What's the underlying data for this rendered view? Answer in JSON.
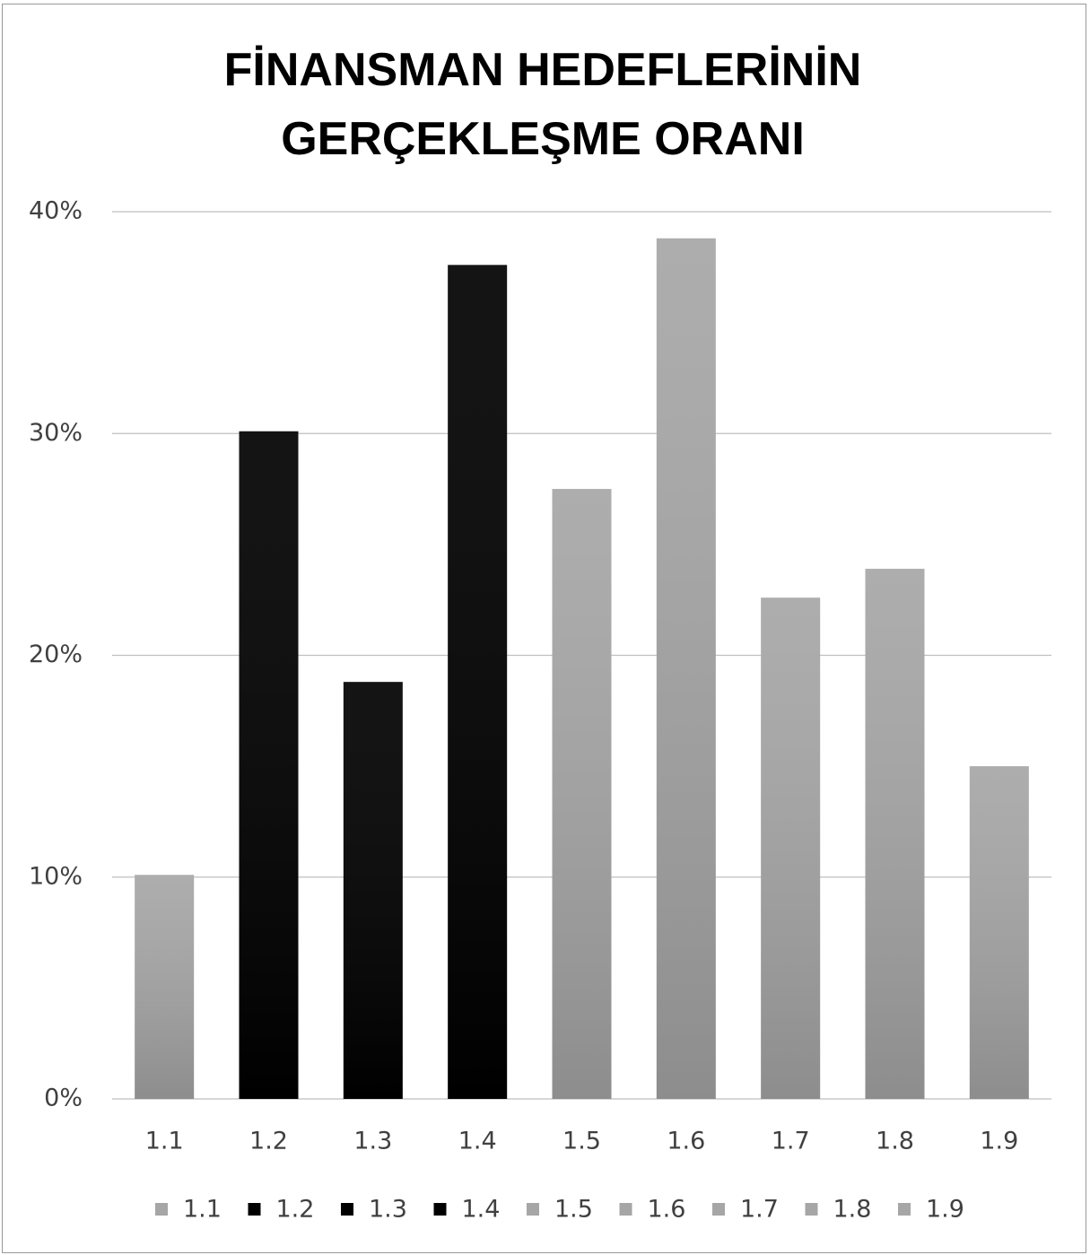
{
  "chart_data": {
    "type": "bar",
    "title": "FİNANSMAN HEDEFLERİNİN GERÇEKLEŞME ORANI",
    "categories": [
      "1.1",
      "1.2",
      "1.3",
      "1.4",
      "1.5",
      "1.6",
      "1.7",
      "1.8",
      "1.9"
    ],
    "values": [
      10.1,
      30.1,
      18.8,
      37.6,
      27.5,
      38.8,
      22.6,
      23.9,
      15.0
    ],
    "colors": [
      "#a6a6a6",
      "#000000",
      "#000000",
      "#000000",
      "#a6a6a6",
      "#a6a6a6",
      "#a6a6a6",
      "#a6a6a6",
      "#a6a6a6"
    ],
    "ylim": [
      0,
      40
    ],
    "yticks": [
      {
        "value": 0,
        "label": "0%"
      },
      {
        "value": 10,
        "label": "10%"
      },
      {
        "value": 20,
        "label": "20%"
      },
      {
        "value": 30,
        "label": "30%"
      },
      {
        "value": 40,
        "label": "40%"
      }
    ],
    "grid": true,
    "legend": "bottom"
  }
}
